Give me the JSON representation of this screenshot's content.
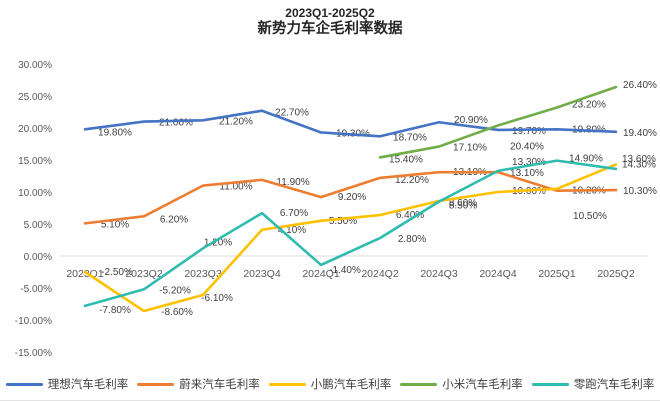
{
  "title": {
    "line1": "2023Q1-2025Q2",
    "line2": "新势力车企毛利率数据"
  },
  "chart_data": {
    "type": "line",
    "title": "2023Q1-2025Q2 新势力车企毛利率数据",
    "categories": [
      "2023Q1",
      "2023Q2",
      "2023Q3",
      "2023Q4",
      "2024Q1",
      "2024Q2",
      "2024Q3",
      "2024Q4",
      "2025Q1",
      "2025Q2"
    ],
    "series": [
      {
        "name": "理想汽车毛利率",
        "color": "#4472C4",
        "values": [
          19.8,
          21.0,
          21.2,
          22.7,
          19.3,
          18.7,
          20.9,
          19.7,
          19.8,
          19.4
        ]
      },
      {
        "name": "蔚来汽车毛利率",
        "color": "#ED7D31",
        "values": [
          5.1,
          6.2,
          11.0,
          11.9,
          9.2,
          12.2,
          13.1,
          13.1,
          10.2,
          10.3
        ]
      },
      {
        "name": "小鹏汽车毛利率",
        "color": "#FFC000",
        "values": [
          -2.5,
          -8.6,
          -6.1,
          4.1,
          5.5,
          6.4,
          8.6,
          10.0,
          10.5,
          14.3
        ]
      },
      {
        "name": "小米汽车毛利率",
        "color": "#70AD47",
        "values": [
          null,
          null,
          null,
          null,
          null,
          15.4,
          17.1,
          20.4,
          23.2,
          26.4
        ]
      },
      {
        "name": "零跑汽车毛利率",
        "color": "#2FBBB0",
        "values": [
          -7.8,
          -5.2,
          1.2,
          6.7,
          -1.4,
          2.8,
          8.5,
          13.3,
          14.9,
          13.6
        ]
      }
    ],
    "ylabel": "",
    "xlabel": "",
    "ylim": [
      -15,
      30
    ],
    "ytick_step": 5,
    "ytick_labels": [
      "30.00%",
      "25.00%",
      "20.00%",
      "15.00%",
      "10.00%",
      "5.00%",
      "0.00%",
      "-5.00%",
      "-10.00%",
      "-15.00%"
    ],
    "label_format": "0.00%",
    "grid": "zero-axis-line-only",
    "legend_position": "bottom",
    "text_color": "#404040",
    "axis_color": "#595959",
    "gridline_color": "#d9d9d9"
  }
}
